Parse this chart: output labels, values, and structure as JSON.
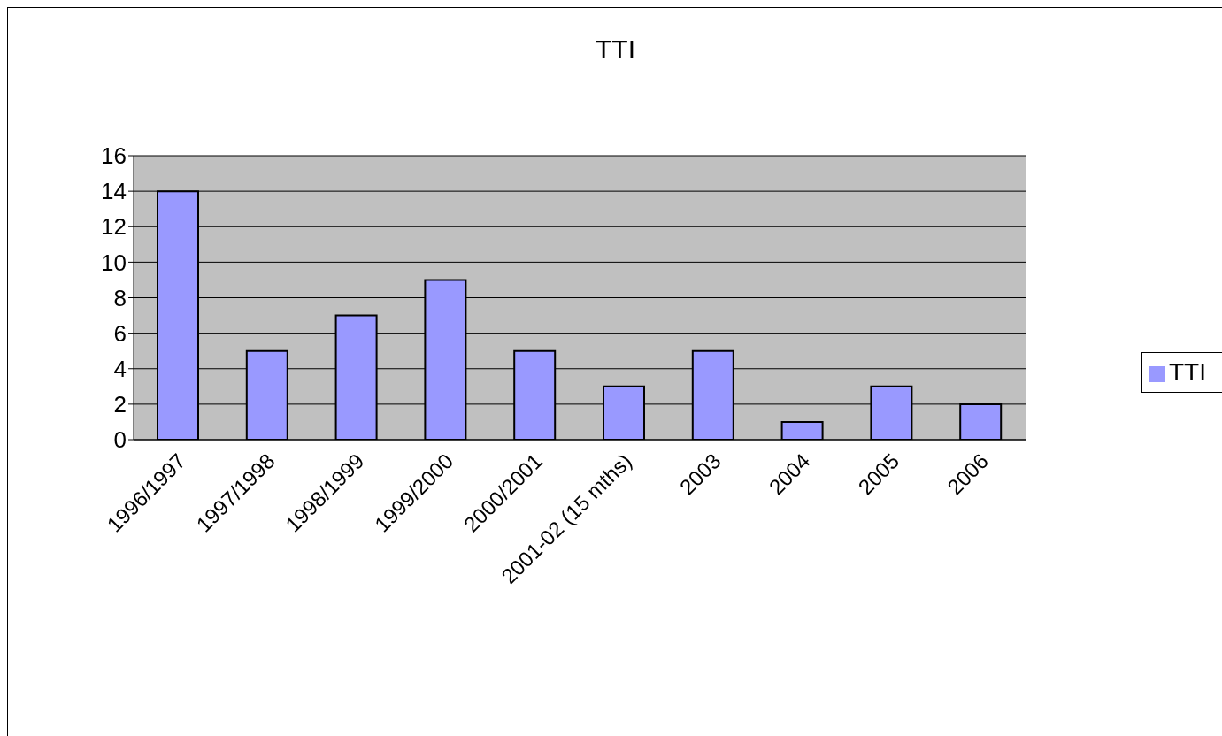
{
  "chart_data": {
    "type": "bar",
    "title": "TTI",
    "categories": [
      "1996/1997",
      "1997/1998",
      "1998/1999",
      "1999/2000",
      "2000/2001",
      "2001-02 (15 mths)",
      "2003",
      "2004",
      "2005",
      "2006"
    ],
    "series": [
      {
        "name": "TTI",
        "color": "#9999ff",
        "values": [
          14,
          5,
          7,
          9,
          5,
          3,
          5,
          1,
          3,
          2
        ]
      }
    ],
    "ylim": [
      0,
      16
    ],
    "yticks": [
      0,
      2,
      4,
      6,
      8,
      10,
      12,
      14,
      16
    ],
    "grid": "y",
    "legend": "right"
  }
}
